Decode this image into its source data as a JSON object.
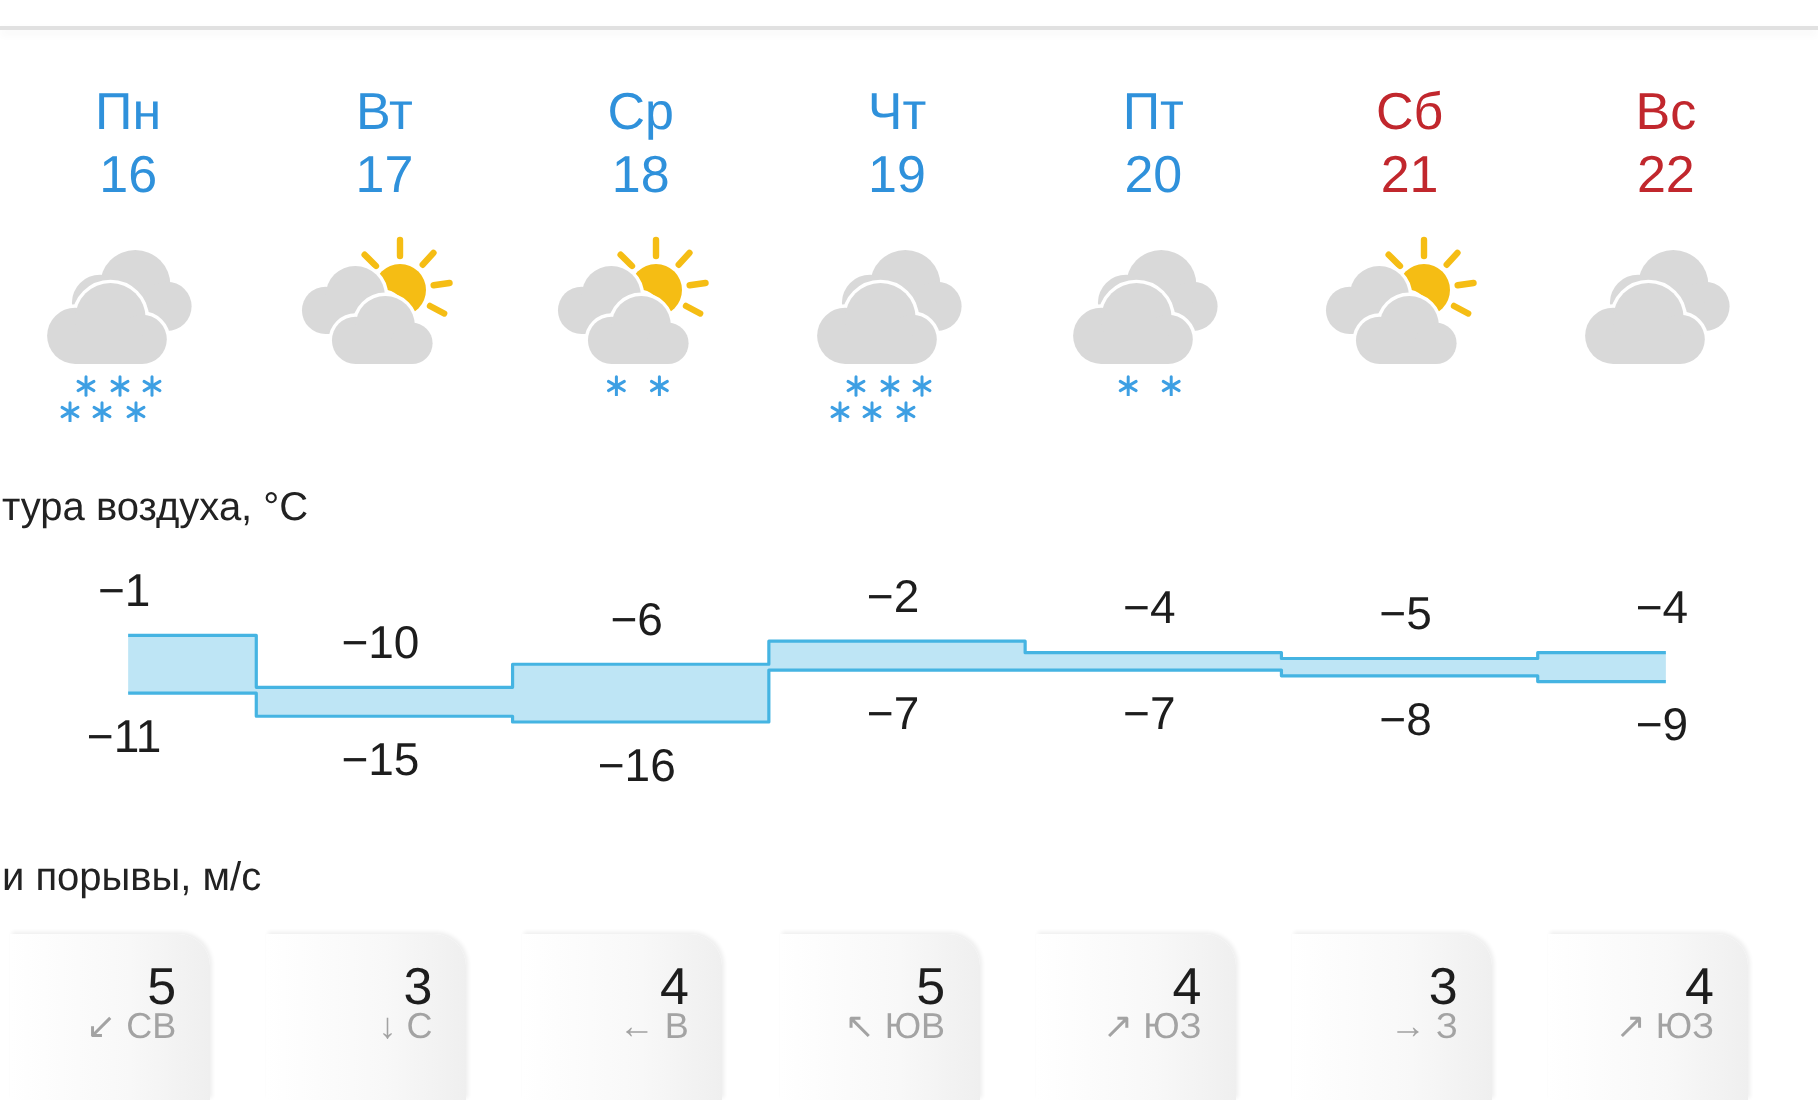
{
  "chart_data": [
    {
      "type": "step",
      "title": "тура воздуха, °C",
      "categories": [
        "Пн 16",
        "Вт 17",
        "Ср 18",
        "Чт 19",
        "Пт 20",
        "Сб 21",
        "Вс 22"
      ],
      "series": [
        {
          "color": "#45b4e2",
          "values": [
            -1,
            -10,
            -6,
            -2,
            -4,
            -5,
            -4
          ],
          "lower": [
            -11,
            -15,
            -16,
            -7,
            -7,
            -8,
            -9
          ],
          "upper": [
            -1,
            -10,
            -6,
            -2,
            -4,
            -5,
            -4
          ]
        },
        {
          "color": "#45b4e2",
          "values": [
            -11,
            -15,
            -16,
            -7,
            -7,
            -8,
            -9
          ]
        }
      ],
      "marker": "none",
      "data_labels": true
    },
    {
      "type": "other",
      "title": "и порывы, м/с",
      "values": [
        5,
        3,
        4,
        5,
        4,
        3,
        4
      ],
      "data_labels": true,
      "annotations": [
        "↙ СВ",
        "↓ С",
        "← В",
        "↖ ЮВ",
        "↗ ЮЗ",
        "→ З",
        "↗ ЮЗ"
      ]
    }
  ]
}
